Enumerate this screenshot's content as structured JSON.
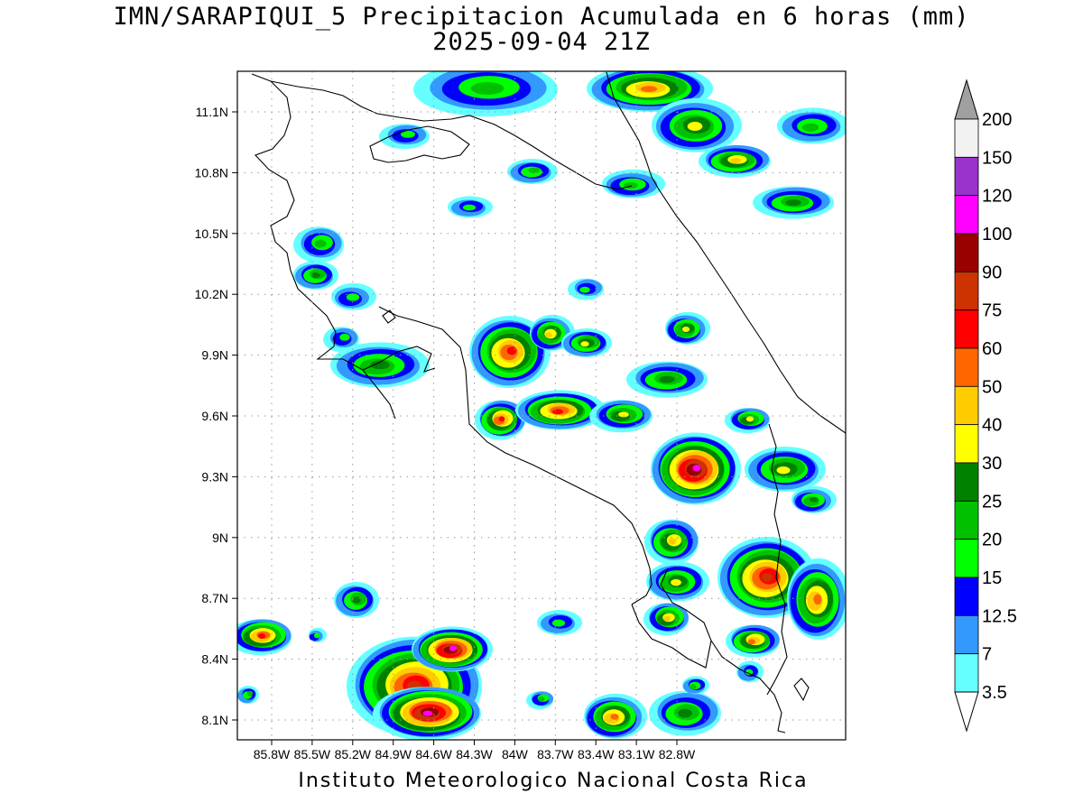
{
  "title": {
    "line1": "IMN/SARAPIQUI_5 Precipitacion Acumulada en 6 horas (mm)",
    "line2": "2025-09-04 21Z"
  },
  "footer": "Instituto Meteorologico Nacional Costa Rica",
  "map": {
    "lon_range": [
      -86.0,
      -83.0
    ],
    "lat_range": [
      8.0,
      11.3
    ],
    "lon_ticks": [
      "85.8W",
      "85.5W",
      "85.2W",
      "84.9W",
      "84.6W",
      "84.3W",
      "84W",
      "83.7W",
      "83.4W",
      "83.1W",
      "82.8W"
    ],
    "lat_ticks": [
      "11.1N",
      "10.8N",
      "10.5N",
      "10.2N",
      "9.9N",
      "9.6N",
      "9.3N",
      "9N",
      "8.7N",
      "8.4N",
      "8.1N"
    ]
  },
  "colorbar": {
    "labels": [
      "200",
      "150",
      "120",
      "100",
      "90",
      "75",
      "60",
      "50",
      "40",
      "30",
      "25",
      "20",
      "15",
      "12.5",
      "7",
      "3.5"
    ],
    "colors": [
      "#a0a0a0",
      "#f2f2f2",
      "#9933cc",
      "#ff00ff",
      "#990000",
      "#cc3300",
      "#ff0000",
      "#ff6600",
      "#ffcc00",
      "#ffff00",
      "#008000",
      "#00c000",
      "#00ff00",
      "#0000ff",
      "#3399ff",
      "#66ffff",
      "#ffffff"
    ]
  }
}
